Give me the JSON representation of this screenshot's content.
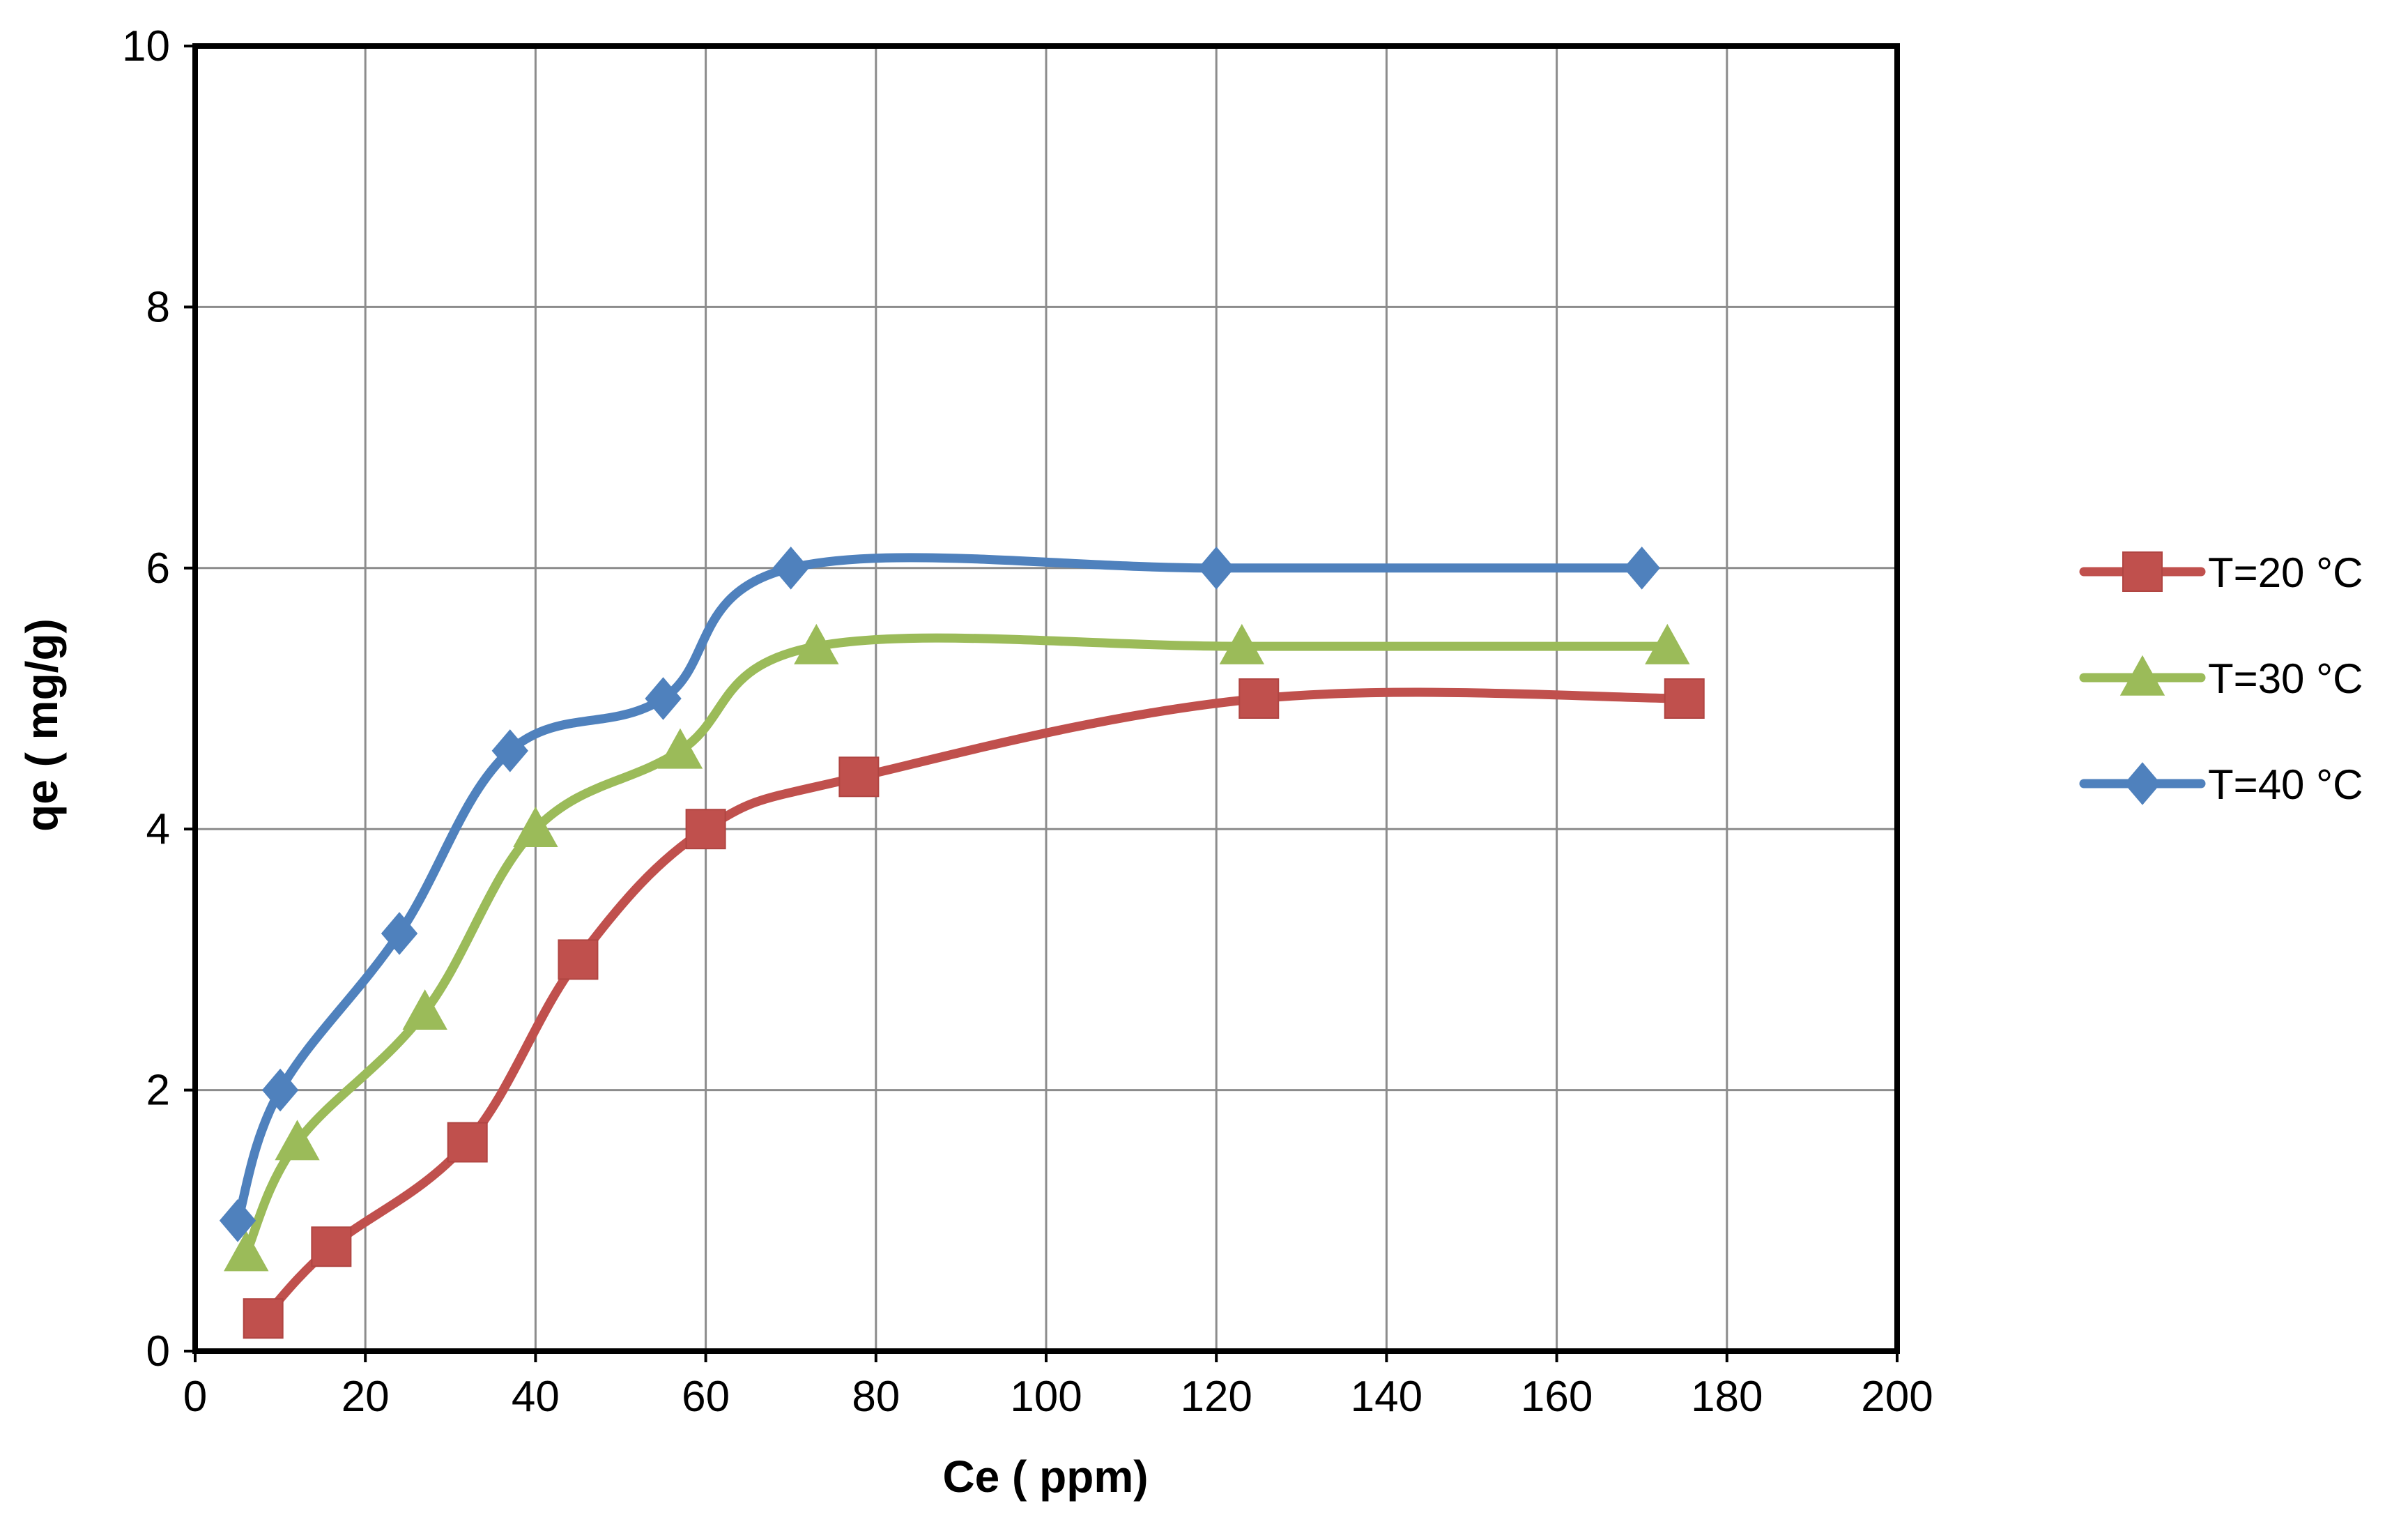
{
  "chart_data": {
    "type": "line",
    "title": "",
    "xlabel": "Ce ( ppm)",
    "ylabel": "qe ( mg/g)",
    "xlim": [
      0,
      200
    ],
    "ylim": [
      0,
      10
    ],
    "xticks": [
      0,
      20,
      40,
      60,
      80,
      100,
      120,
      140,
      160,
      180,
      200
    ],
    "yticks": [
      0,
      2,
      4,
      6,
      8,
      10
    ],
    "grid": true,
    "legend_position": "right",
    "smooth": true,
    "series": [
      {
        "name": "T=20 °C",
        "color": "#c0504d",
        "marker": "square",
        "x": [
          8,
          16,
          32,
          45,
          60,
          78,
          125,
          175
        ],
        "y": [
          0.25,
          0.8,
          1.6,
          3.0,
          4.0,
          4.4,
          5.0,
          5.0
        ]
      },
      {
        "name": "T=30  °C",
        "color": "#9bbb59",
        "marker": "triangle",
        "x": [
          6,
          12,
          27,
          40,
          57,
          73,
          123,
          173
        ],
        "y": [
          0.75,
          1.6,
          2.6,
          4.0,
          4.6,
          5.4,
          5.4,
          5.4
        ]
      },
      {
        "name": "T=40  °C",
        "color": "#4f81bd",
        "marker": "diamond",
        "x": [
          5,
          10,
          24,
          37,
          55,
          70,
          120,
          170
        ],
        "y": [
          1.0,
          2.0,
          3.2,
          4.6,
          5.0,
          6.0,
          6.0,
          6.0
        ]
      }
    ]
  }
}
